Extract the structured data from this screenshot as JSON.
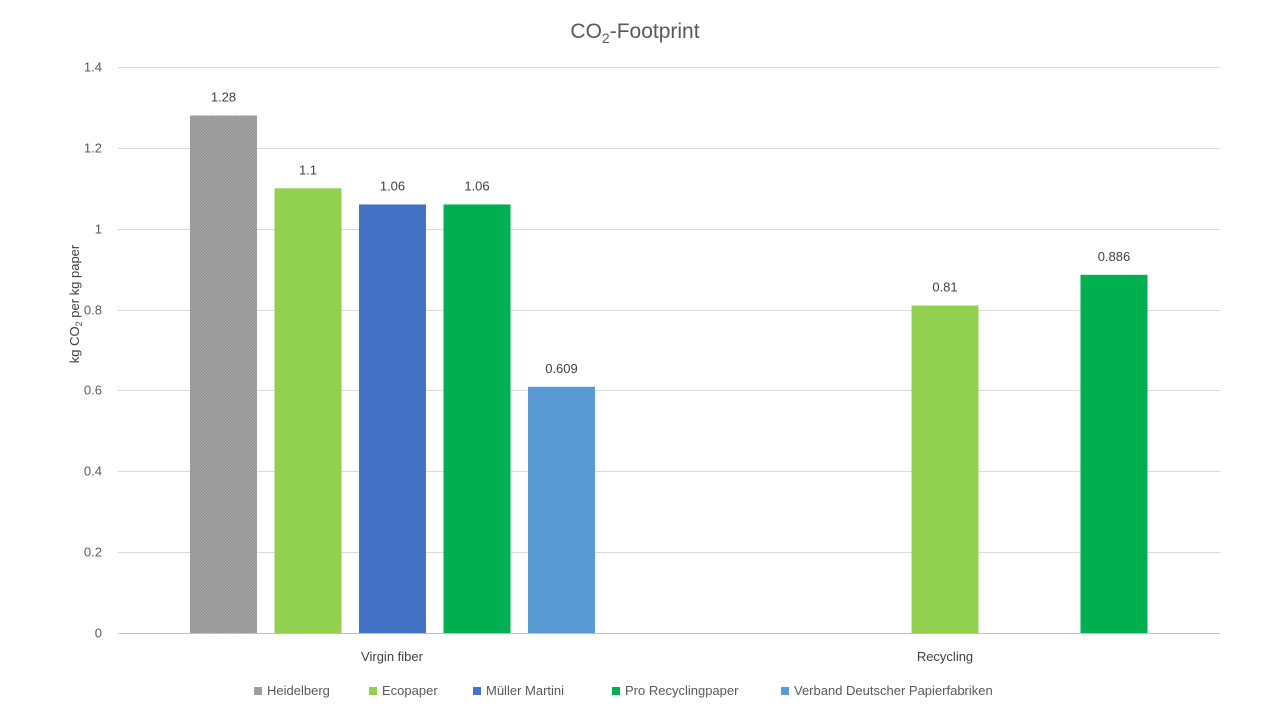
{
  "chart_data": {
    "type": "bar",
    "title": "CO₂-Footprint",
    "title_parts": {
      "main": "CO",
      "sub": "2",
      "rest": "-Footprint"
    },
    "ylabel": "kg CO₂ per kg paper",
    "ylabel_parts": {
      "main": "kg CO",
      "sub": "2",
      "rest": " per kg paper"
    },
    "xlabel": "",
    "ylim": [
      0,
      1.4
    ],
    "yticks": [
      0,
      0.2,
      0.4,
      0.6,
      0.8,
      1,
      1.2,
      1.4
    ],
    "ytick_labels": [
      "0",
      "0.2",
      "0.4",
      "0.6",
      "0.8",
      "1",
      "1.2",
      "1.4"
    ],
    "grid": true,
    "legend_position": "bottom",
    "categories": [
      "Virgin fiber",
      "Recycling"
    ],
    "series": [
      {
        "name": "Heidelberg",
        "color": "#a5a5a5",
        "values": [
          1.28,
          null
        ],
        "labels": [
          "1.28",
          ""
        ]
      },
      {
        "name": "Ecopaper",
        "color": "#92d050",
        "values": [
          1.1,
          0.81
        ],
        "labels": [
          "1.1",
          "0.81"
        ]
      },
      {
        "name": "Müller Martini",
        "color": "#4472c4",
        "values": [
          1.06,
          null
        ],
        "labels": [
          "1.06",
          ""
        ]
      },
      {
        "name": "Pro Recyclingpaper",
        "color": "#00b050",
        "values": [
          1.06,
          0.886
        ],
        "labels": [
          "1.06",
          "0.886"
        ]
      },
      {
        "name": "Verband Deutscher Papierfabriken",
        "color": "#5b9bd5",
        "values": [
          0.609,
          null
        ],
        "labels": [
          "0.609",
          ""
        ]
      }
    ]
  }
}
